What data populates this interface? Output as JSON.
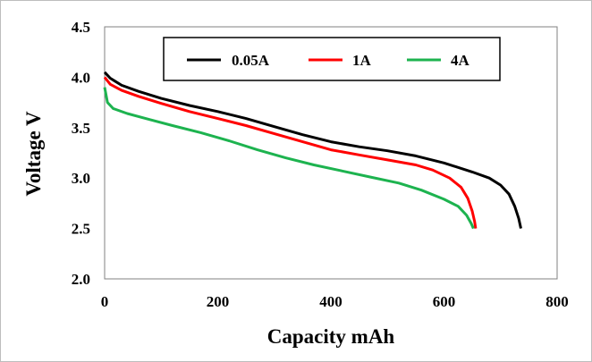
{
  "chart_data": {
    "type": "line",
    "title": "",
    "xlabel": "Capacity mAh",
    "ylabel": "Voltage V",
    "xlim": [
      0,
      800
    ],
    "ylim": [
      2.0,
      4.5
    ],
    "x_ticks": [
      0,
      200,
      400,
      600,
      800
    ],
    "y_ticks": [
      2.0,
      2.5,
      3.0,
      3.5,
      4.0,
      4.5
    ],
    "x_tick_labels": [
      "0",
      "200",
      "400",
      "600",
      "800"
    ],
    "y_tick_labels": [
      "2.0",
      "2.5",
      "3.0",
      "3.5",
      "4.0",
      "4.5"
    ],
    "grid": false,
    "legend": "top",
    "series": [
      {
        "name": "0.05A",
        "color": "#000000",
        "points": [
          [
            0,
            4.05
          ],
          [
            10,
            3.99
          ],
          [
            30,
            3.92
          ],
          [
            60,
            3.86
          ],
          [
            100,
            3.79
          ],
          [
            150,
            3.72
          ],
          [
            200,
            3.66
          ],
          [
            250,
            3.59
          ],
          [
            300,
            3.51
          ],
          [
            350,
            3.43
          ],
          [
            400,
            3.36
          ],
          [
            450,
            3.31
          ],
          [
            500,
            3.27
          ],
          [
            550,
            3.22
          ],
          [
            600,
            3.15
          ],
          [
            650,
            3.06
          ],
          [
            680,
            3.0
          ],
          [
            700,
            2.93
          ],
          [
            715,
            2.84
          ],
          [
            725,
            2.72
          ],
          [
            732,
            2.6
          ],
          [
            736,
            2.5
          ]
        ]
      },
      {
        "name": "1A",
        "color": "#ff0000",
        "points": [
          [
            0,
            4.0
          ],
          [
            10,
            3.93
          ],
          [
            30,
            3.87
          ],
          [
            60,
            3.81
          ],
          [
            100,
            3.74
          ],
          [
            150,
            3.66
          ],
          [
            200,
            3.59
          ],
          [
            250,
            3.52
          ],
          [
            300,
            3.44
          ],
          [
            350,
            3.36
          ],
          [
            400,
            3.28
          ],
          [
            450,
            3.23
          ],
          [
            500,
            3.18
          ],
          [
            550,
            3.13
          ],
          [
            580,
            3.08
          ],
          [
            610,
            3.0
          ],
          [
            630,
            2.91
          ],
          [
            642,
            2.8
          ],
          [
            650,
            2.67
          ],
          [
            654,
            2.57
          ],
          [
            656,
            2.5
          ]
        ]
      },
      {
        "name": "4A",
        "color": "#1db34f",
        "points": [
          [
            0,
            3.9
          ],
          [
            5,
            3.75
          ],
          [
            15,
            3.69
          ],
          [
            40,
            3.64
          ],
          [
            80,
            3.58
          ],
          [
            120,
            3.52
          ],
          [
            170,
            3.45
          ],
          [
            220,
            3.37
          ],
          [
            270,
            3.28
          ],
          [
            320,
            3.2
          ],
          [
            370,
            3.13
          ],
          [
            420,
            3.07
          ],
          [
            470,
            3.01
          ],
          [
            520,
            2.95
          ],
          [
            560,
            2.88
          ],
          [
            600,
            2.79
          ],
          [
            625,
            2.72
          ],
          [
            640,
            2.63
          ],
          [
            648,
            2.55
          ],
          [
            652,
            2.5
          ]
        ]
      }
    ]
  }
}
